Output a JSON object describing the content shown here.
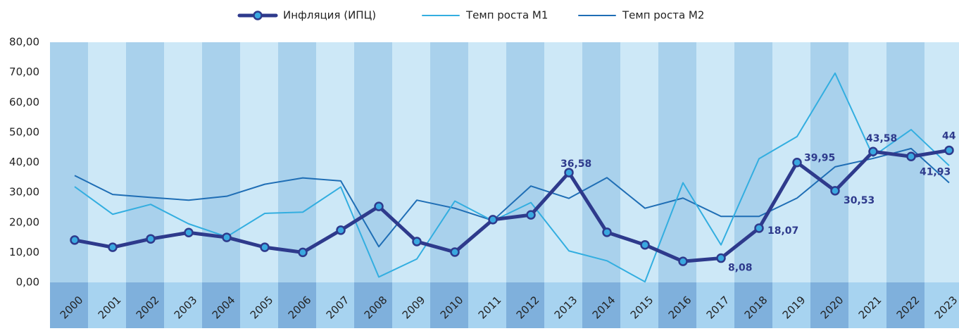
{
  "chart_data": {
    "type": "line",
    "categories": [
      "2000",
      "2001",
      "2002",
      "2003",
      "2004",
      "2005",
      "2006",
      "2007",
      "2008",
      "2009",
      "2010",
      "2011",
      "2012",
      "2013",
      "2014",
      "2015",
      "2016",
      "2017",
      "2018",
      "2019",
      "2020",
      "2021",
      "2022",
      "2023"
    ],
    "series": [
      {
        "name": "Инфляция (ИПЦ)",
        "color": "#2e3a8c",
        "marker": "#3aa8e0",
        "values": [
          14.1,
          11.7,
          14.5,
          16.6,
          15.0,
          11.7,
          10.0,
          17.4,
          25.3,
          13.6,
          10.1,
          20.9,
          22.5,
          36.58,
          16.7,
          12.5,
          7.0,
          8.08,
          18.07,
          39.95,
          30.53,
          43.58,
          41.93,
          44
        ],
        "value_labels": [
          null,
          null,
          null,
          null,
          null,
          null,
          null,
          null,
          null,
          null,
          null,
          null,
          null,
          "36,58",
          null,
          null,
          null,
          "8,08",
          "18,07",
          "39,95",
          "30,53",
          "43,58",
          "41,93",
          "44"
        ]
      },
      {
        "name": "Темп роста М1",
        "color": "#33aee0",
        "values": [
          31.9,
          22.7,
          26.0,
          19.5,
          15.2,
          23.0,
          23.4,
          31.8,
          1.8,
          7.8,
          27.1,
          20.5,
          26.6,
          10.5,
          7.2,
          0.2,
          33.2,
          12.5,
          41.2,
          48.6,
          69.7,
          42.0,
          50.9,
          38.9
        ]
      },
      {
        "name": "Темп роста М2",
        "color": "#1f6eb5",
        "values": [
          35.6,
          29.3,
          28.3,
          27.4,
          28.7,
          32.7,
          34.8,
          33.8,
          11.9,
          27.4,
          24.7,
          20.6,
          32.1,
          28.0,
          34.9,
          24.7,
          28.1,
          22.0,
          22.0,
          28.1,
          38.5,
          41.3,
          44.6,
          33.2
        ]
      }
    ],
    "ylim": [
      0,
      80
    ],
    "yticks": [
      {
        "value": 0,
        "label": "0,00"
      },
      {
        "value": 10,
        "label": "10,00"
      },
      {
        "value": 20,
        "label": "20,00"
      },
      {
        "value": 30,
        "label": "30,00"
      },
      {
        "value": 40,
        "label": "40,00"
      },
      {
        "value": 50,
        "label": "50,00"
      },
      {
        "value": 60,
        "label": "60,00"
      },
      {
        "value": 70,
        "label": "70,00"
      },
      {
        "value": 80,
        "label": "80,00"
      }
    ],
    "legend": "top"
  }
}
